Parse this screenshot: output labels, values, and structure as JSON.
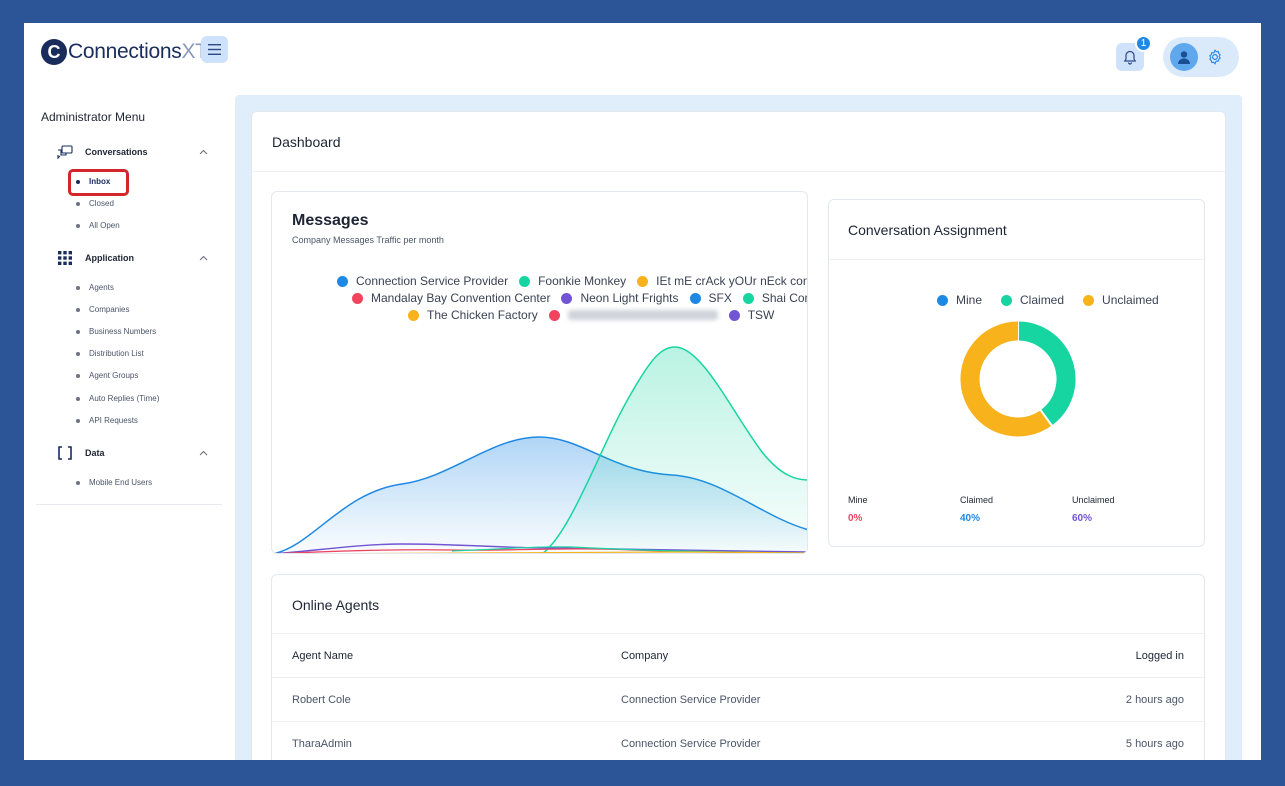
{
  "brand": {
    "mark": "C",
    "name_main": "Connections",
    "name_xt": "XT",
    "tm": "™"
  },
  "header": {
    "notification_count": "1"
  },
  "sidebar": {
    "title": "Administrator Menu",
    "groups": [
      {
        "label": "Conversations",
        "items": [
          "Inbox",
          "Closed",
          "All Open"
        ]
      },
      {
        "label": "Application",
        "items": [
          "Agents",
          "Companies",
          "Business Numbers",
          "Distribution List",
          "Agent Groups",
          "Auto Replies (Time)",
          "API Requests"
        ]
      },
      {
        "label": "Data",
        "items": [
          "Mobile End Users"
        ]
      }
    ],
    "active_item": "Inbox"
  },
  "dashboard": {
    "title": "Dashboard"
  },
  "messages": {
    "title": "Messages",
    "subtitle": "Company Messages Traffic per month",
    "legend": [
      {
        "name": "Connection Service Provider",
        "color": "#1e88e5"
      },
      {
        "name": "Foonkie Monkey",
        "color": "#17d5a0"
      },
      {
        "name": "IEt mE crAck yOUr nEck company",
        "color": "#f8b21c"
      },
      {
        "name": "Mandalay Bay Convention Center",
        "color": "#f0445e"
      },
      {
        "name": "Neon Light Frights",
        "color": "#7155d3"
      },
      {
        "name": "SFX",
        "color": "#1e88e5"
      },
      {
        "name": "Shai Company",
        "color": "#17d5a0"
      },
      {
        "name": "The Chicken Factory",
        "color": "#f8b21c"
      },
      {
        "name": "",
        "color": "#f0445e"
      },
      {
        "name": "TSW",
        "color": "#7155d3"
      }
    ]
  },
  "conversation_assignment": {
    "title": "Conversation Assignment",
    "chart_data": {
      "type": "pie",
      "labels": [
        "Mine",
        "Claimed",
        "Unclaimed"
      ],
      "values": [
        0,
        40,
        60
      ],
      "colors": [
        "#1e88e5",
        "#17d5a0",
        "#f8b21c"
      ],
      "legend": "top"
    },
    "stats": [
      {
        "label": "Mine",
        "value": "0%",
        "color": "#f0445e"
      },
      {
        "label": "Claimed",
        "value": "40%",
        "color": "#1e88e5"
      },
      {
        "label": "Unclaimed",
        "value": "60%",
        "color": "#7155d3"
      }
    ]
  },
  "online_agents": {
    "title": "Online Agents",
    "columns": [
      "Agent Name",
      "Company",
      "Logged in"
    ],
    "rows": [
      [
        "Robert Cole",
        "Connection Service Provider",
        "2 hours ago"
      ],
      [
        "TharaAdmin",
        "Connection Service Provider",
        "5 hours ago"
      ]
    ]
  }
}
